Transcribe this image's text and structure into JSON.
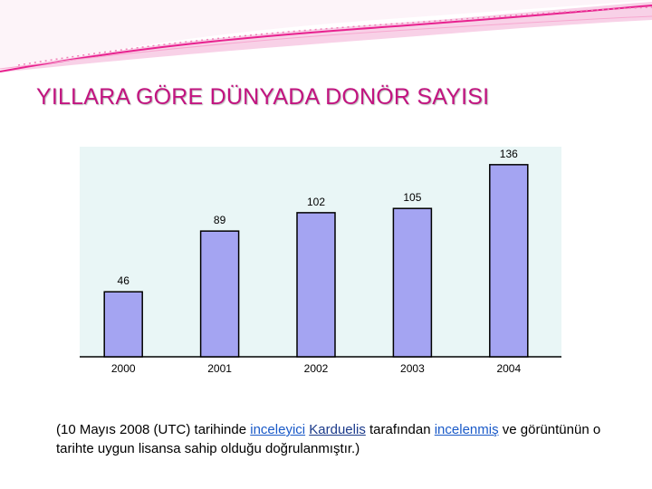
{
  "slide": {
    "title": "YILLARA GÖRE DÜNYADA DONÖR SAYISI"
  },
  "chart_data": {
    "type": "bar",
    "categories": [
      "2000",
      "2001",
      "2002",
      "2003",
      "2004"
    ],
    "values": [
      46,
      89,
      102,
      105,
      136
    ],
    "data_labels": [
      "46",
      "89",
      "102",
      "105",
      "136"
    ],
    "ylim": [
      0,
      150
    ],
    "grid": false,
    "bar_color": "#a4a4f2",
    "plot_background": "#e9f6f6"
  },
  "caption": {
    "part1": "(10 Mayıs 2008 (UTC) tarihinde ",
    "link1": "inceleyici",
    "space1": " ",
    "link2": "Karduelis",
    "part2": " tarafından ",
    "link3": "incelenmiş",
    "part3": " ve görüntünün o tarihte uygun  lisansa sahip olduğu doğrulanmıştır.)"
  },
  "theme": {
    "title_color": "#c21480",
    "accent_pink": "#e8218f",
    "link_color": "#1a5ac8"
  }
}
